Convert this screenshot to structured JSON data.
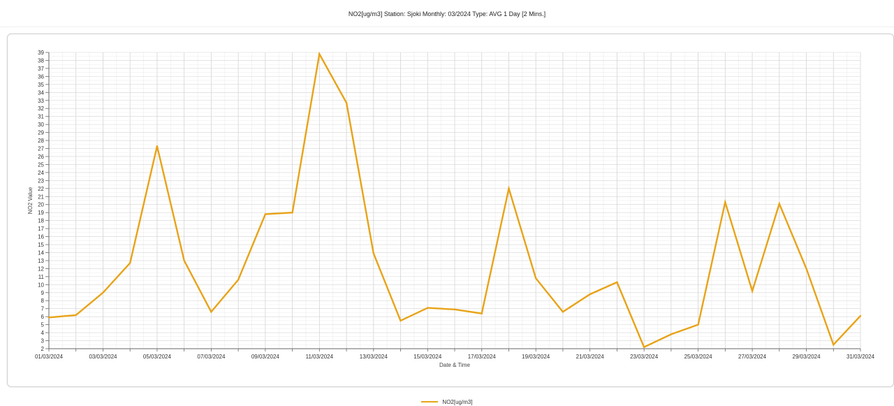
{
  "header": {
    "title": "NO2[ug/m3] Station: Sjoki  Monthly: 03/2024  Type: AVG 1 Day [2 Mins.]"
  },
  "legend": {
    "label": "NO2[ug/m3]"
  },
  "colors": {
    "series": "#E8A317",
    "grid_major": "#d4d4d4",
    "grid_minor": "#ececec",
    "axis": "#666666",
    "plot_background": "#ffffff"
  },
  "chart_data": {
    "type": "line",
    "title": "NO2[ug/m3] Station: Sjoki  Monthly: 03/2024  Type: AVG 1 Day [2 Mins.]",
    "xlabel": "Date & Time",
    "ylabel": "NO2 Value",
    "ylim": [
      2,
      39
    ],
    "yticks": [
      2,
      3,
      4,
      5,
      6,
      7,
      8,
      9,
      10,
      11,
      12,
      13,
      14,
      15,
      16,
      17,
      18,
      19,
      20,
      21,
      22,
      23,
      24,
      25,
      26,
      27,
      28,
      29,
      30,
      31,
      32,
      33,
      34,
      35,
      36,
      37,
      38,
      39
    ],
    "xlim": [
      "01/03/2024",
      "31/03/2024"
    ],
    "xticks": [
      "01/03/2024",
      "03/03/2024",
      "05/03/2024",
      "07/03/2024",
      "09/03/2024",
      "11/03/2024",
      "13/03/2024",
      "15/03/2024",
      "17/03/2024",
      "19/03/2024",
      "21/03/2024",
      "23/03/2024",
      "25/03/2024",
      "27/03/2024",
      "29/03/2024",
      "31/03/2024"
    ],
    "grid": true,
    "legend_position": "bottom-center",
    "x": [
      "01/03/2024",
      "02/03/2024",
      "03/03/2024",
      "04/03/2024",
      "05/03/2024",
      "06/03/2024",
      "07/03/2024",
      "08/03/2024",
      "09/03/2024",
      "10/03/2024",
      "11/03/2024",
      "12/03/2024",
      "13/03/2024",
      "14/03/2024",
      "15/03/2024",
      "16/03/2024",
      "17/03/2024",
      "18/03/2024",
      "19/03/2024",
      "20/03/2024",
      "21/03/2024",
      "22/03/2024",
      "23/03/2024",
      "24/03/2024",
      "25/03/2024",
      "26/03/2024",
      "27/03/2024",
      "28/03/2024",
      "29/03/2024",
      "30/03/2024",
      "31/03/2024"
    ],
    "series": [
      {
        "name": "NO2[ug/m3]",
        "values": [
          5.9,
          6.2,
          9.0,
          12.7,
          27.3,
          13.0,
          6.6,
          10.6,
          18.8,
          19.0,
          38.8,
          32.7,
          13.9,
          5.5,
          7.1,
          6.9,
          6.4,
          22.0,
          10.8,
          6.6,
          8.8,
          10.3,
          2.2,
          3.8,
          5.0,
          20.3,
          9.2,
          20.1,
          12.0,
          2.5,
          6.1
        ]
      }
    ]
  }
}
